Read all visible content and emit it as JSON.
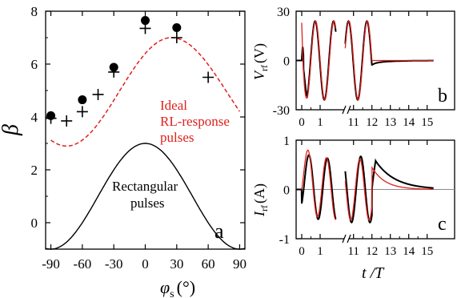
{
  "colors": {
    "axis": "#000000",
    "red": "#e0201c",
    "black": "#000000"
  },
  "chart_data": [
    {
      "id": "a",
      "type": "scatter",
      "panel_label": "a",
      "ylabel": "β",
      "xlabel_sym": "φ",
      "xlabel_sub": "s",
      "xlabel_unit": "(°)",
      "xlim": [
        -95,
        95
      ],
      "ylim": [
        -1,
        8
      ],
      "xticks": [
        -90,
        -60,
        -30,
        0,
        30,
        60,
        90
      ],
      "xticklabels": [
        "-90",
        "-60",
        "-30",
        "0",
        "30",
        "60",
        "90"
      ],
      "yticks": [
        0,
        2,
        4,
        6,
        8
      ],
      "yticklabels": [
        "0",
        "2",
        "4",
        "6",
        "8"
      ],
      "annotations": {
        "ideal": [
          "Ideal",
          "RL-response",
          "pulses"
        ],
        "rect": [
          "Rectangular",
          "pulses"
        ]
      },
      "series": [
        {
          "marker": "circle",
          "x": [
            -90,
            -60,
            -30,
            0,
            30
          ],
          "y": [
            4.05,
            4.65,
            5.88,
            7.65,
            7.38
          ]
        },
        {
          "marker": "plus",
          "x": [
            -90,
            -75,
            -60,
            -45,
            -30,
            0,
            30,
            60
          ],
          "y": [
            3.95,
            3.85,
            4.2,
            4.85,
            5.7,
            7.35,
            7.0,
            5.5
          ]
        },
        {
          "style": "dashed-red",
          "curve": "ideal",
          "x_range": [
            -90,
            90
          ]
        },
        {
          "style": "solid-black",
          "curve": "rect",
          "x_range": [
            -95,
            95
          ]
        }
      ]
    },
    {
      "id": "b",
      "type": "line",
      "panel_label": "b",
      "ylabel_sym": "V",
      "ylabel_sub": "rf",
      "ylabel_unit": "(V)",
      "ylim": [
        -30,
        30
      ],
      "yticks": [
        -30,
        0,
        30
      ],
      "yticklabels": [
        "-30",
        "0",
        "30"
      ],
      "xticks_left": [
        0,
        1
      ],
      "xticks_right": [
        11,
        12,
        13,
        14,
        15
      ],
      "xticklabels": [
        "0",
        "1",
        "11",
        "12",
        "13",
        "14",
        "15"
      ],
      "amplitude": 24
    },
    {
      "id": "c",
      "type": "line",
      "panel_label": "c",
      "ylabel_sym": "I",
      "ylabel_sub": "rf",
      "ylabel_unit": "(A)",
      "ylim": [
        -1,
        1
      ],
      "yticks": [
        -1,
        0,
        1
      ],
      "yticklabels": [
        "-1",
        "0",
        "1"
      ],
      "xlabel_sym": "t",
      "xlabel_rest": " /T",
      "xticks_left": [
        0,
        1
      ],
      "xticks_right": [
        11,
        12,
        13,
        14,
        15
      ],
      "xticklabels": [
        "0",
        "1",
        "11",
        "12",
        "13",
        "14",
        "15"
      ]
    }
  ]
}
